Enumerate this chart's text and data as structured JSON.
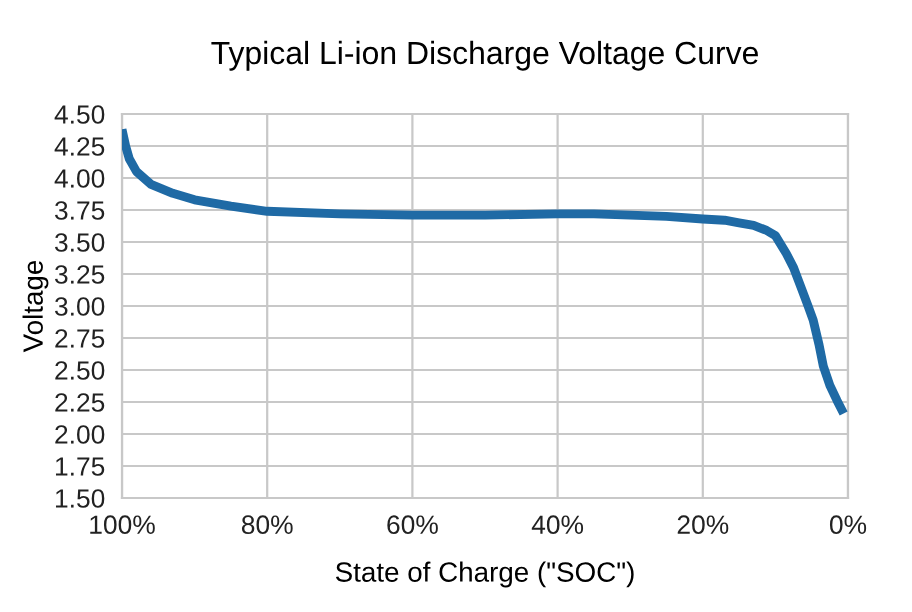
{
  "chart_data": {
    "type": "line",
    "title": "Typical Li-ion Discharge Voltage Curve",
    "xlabel": "State of Charge (\"SOC\")",
    "ylabel": "Voltage",
    "series": [
      {
        "color": "#1f6aa5",
        "x": [
          100,
          99.5,
          99,
          98,
          96,
          93,
          90,
          85,
          80,
          70,
          60,
          50,
          40,
          35,
          30,
          25,
          20,
          17,
          15,
          13,
          11.2,
          10,
          8.5,
          7.5,
          6.5,
          5.5,
          4.8,
          4,
          3.4,
          2.5,
          1.5,
          0.6
        ],
        "values": [
          4.38,
          4.25,
          4.15,
          4.05,
          3.95,
          3.88,
          3.83,
          3.78,
          3.74,
          3.72,
          3.71,
          3.71,
          3.72,
          3.72,
          3.71,
          3.7,
          3.68,
          3.67,
          3.65,
          3.63,
          3.59,
          3.55,
          3.41,
          3.3,
          3.15,
          3.0,
          2.89,
          2.7,
          2.53,
          2.38,
          2.26,
          2.16
        ]
      }
    ],
    "xlim": [
      100,
      0
    ],
    "xticks": [
      {
        "value": 100,
        "label": "100%"
      },
      {
        "value": 80,
        "label": "80%"
      },
      {
        "value": 60,
        "label": "60%"
      },
      {
        "value": 40,
        "label": "40%"
      },
      {
        "value": 20,
        "label": "20%"
      },
      {
        "value": 0,
        "label": "0%"
      }
    ],
    "ylim": [
      1.5,
      4.5
    ],
    "yticks": [
      {
        "value": 1.5,
        "label": "1.50"
      },
      {
        "value": 1.75,
        "label": "1.75"
      },
      {
        "value": 2.0,
        "label": "2.00"
      },
      {
        "value": 2.25,
        "label": "2.25"
      },
      {
        "value": 2.5,
        "label": "2.50"
      },
      {
        "value": 2.75,
        "label": "2.75"
      },
      {
        "value": 3.0,
        "label": "3.00"
      },
      {
        "value": 3.25,
        "label": "3.25"
      },
      {
        "value": 3.5,
        "label": "3.50"
      },
      {
        "value": 3.75,
        "label": "3.75"
      },
      {
        "value": 4.0,
        "label": "4.00"
      },
      {
        "value": 4.25,
        "label": "4.25"
      },
      {
        "value": 4.5,
        "label": "4.50"
      }
    ],
    "grid": true,
    "marker": "none",
    "line_style": "solid"
  }
}
